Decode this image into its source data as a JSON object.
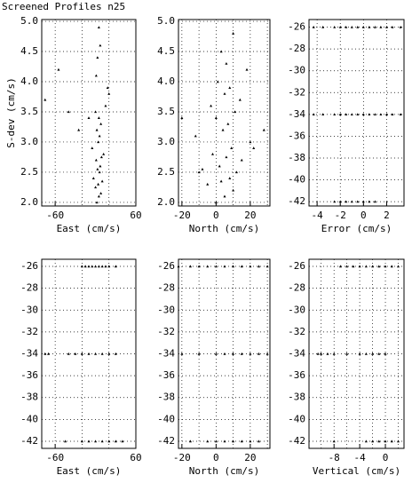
{
  "chart_data": [
    {
      "type": "scatter",
      "title": "Screened Profiles n25",
      "x_label": "East (cm/s)",
      "y_label": "S-dev (cm/s)",
      "x": [
        2,
        5,
        8,
        0,
        4,
        10,
        -3,
        6,
        3,
        7,
        1,
        9,
        12,
        -5,
        4,
        6,
        2,
        8,
        5,
        0,
        15,
        -10,
        20,
        -40,
        -75,
        -55,
        3,
        7,
        5,
        1,
        18,
        -25
      ],
      "y": [
        2.0,
        2.1,
        2.15,
        2.25,
        2.3,
        2.35,
        2.4,
        2.5,
        2.55,
        2.6,
        2.7,
        2.75,
        2.8,
        2.9,
        3.0,
        3.1,
        3.2,
        3.3,
        3.4,
        3.5,
        3.6,
        3.4,
        3.8,
        3.5,
        3.7,
        4.2,
        4.4,
        4.6,
        4.9,
        4.1,
        3.9,
        3.2
      ],
      "color": "#000000",
      "xlim": [
        -80,
        60
      ],
      "ylim": [
        1.94,
        5.03
      ],
      "xticks": [
        -60,
        60
      ],
      "xgrid": [
        -60,
        -20,
        20,
        60
      ],
      "yticks": [
        {
          "value": 2,
          "label": "2.0"
        },
        {
          "value": 2.5,
          "label": "2.5"
        },
        {
          "value": 3,
          "label": "3.0"
        },
        {
          "value": 3.5,
          "label": "3.5"
        },
        {
          "value": 4,
          "label": "4.0"
        },
        {
          "value": 4.5,
          "label": "4.5"
        },
        {
          "value": 5,
          "label": "5.0"
        }
      ]
    },
    {
      "type": "scatter",
      "x_label": "North (cm/s)",
      "x": [
        0,
        5,
        10,
        -5,
        3,
        8,
        12,
        -8,
        2,
        15,
        6,
        -2,
        9,
        20,
        -12,
        4,
        7,
        0,
        11,
        -3,
        14,
        5,
        8,
        1,
        18,
        28,
        -20,
        3,
        10,
        6,
        -10,
        22
      ],
      "y": [
        2.0,
        2.1,
        2.2,
        2.3,
        2.35,
        2.4,
        2.5,
        2.55,
        2.6,
        2.7,
        2.75,
        2.8,
        2.9,
        3.0,
        3.1,
        3.2,
        3.3,
        3.4,
        3.5,
        3.6,
        3.7,
        3.8,
        3.9,
        4.0,
        4.2,
        3.2,
        3.4,
        4.5,
        4.8,
        4.3,
        2.5,
        2.9
      ],
      "color": "#000000",
      "xlim": [
        -22,
        31.5
      ],
      "ylim": [
        1.94,
        5.03
      ],
      "xticks": [
        -20,
        0,
        20
      ],
      "xgrid": [
        -20,
        -10,
        0,
        10,
        20,
        30
      ],
      "yticks": [
        {
          "value": 2,
          "label": "2.0"
        },
        {
          "value": 2.5,
          "label": "2.5"
        },
        {
          "value": 3,
          "label": "3.0"
        },
        {
          "value": 3.5,
          "label": "3.5"
        },
        {
          "value": 4,
          "label": "4.0"
        },
        {
          "value": 4.5,
          "label": "4.5"
        },
        {
          "value": 5,
          "label": "5.0"
        }
      ]
    },
    {
      "type": "scatter",
      "x_label": "Error (cm/s)",
      "x": [
        -4.3,
        -3.5,
        -2.5,
        -2,
        -1.5,
        -1,
        -0.5,
        0,
        0.5,
        1,
        1.5,
        2,
        2.5,
        3.2,
        -4.3,
        -3.5,
        -2.5,
        -2,
        -1.5,
        -1,
        -0.5,
        0,
        0.5,
        1,
        1.5,
        2,
        2.5,
        3.2,
        -2.5,
        -2,
        -1.5,
        -1,
        -0.5,
        0,
        0.5,
        1
      ],
      "y": [
        -26,
        -26,
        -26,
        -26,
        -26,
        -26,
        -26,
        -26,
        -26,
        -26,
        -26,
        -26,
        -26,
        -26,
        -34,
        -34,
        -34,
        -34,
        -34,
        -34,
        -34,
        -34,
        -34,
        -34,
        -34,
        -34,
        -34,
        -34,
        -42,
        -42,
        -42,
        -42,
        -42,
        -42,
        -42,
        -42
      ],
      "color": "#000000",
      "xlim": [
        -4.7,
        3.5
      ],
      "ylim": [
        -42.4,
        -25.3
      ],
      "xticks": [
        -4,
        -2,
        0,
        2
      ],
      "xgrid": [
        -4,
        -2,
        0,
        2
      ],
      "yticks": [
        -42,
        -40,
        -38,
        -36,
        -34,
        -32,
        -30,
        -28,
        -26
      ]
    },
    {
      "type": "scatter",
      "x_label": "East (cm/s)",
      "x": [
        -20,
        -15,
        -10,
        -5,
        0,
        5,
        10,
        15,
        20,
        30,
        -75,
        -70,
        -40,
        -30,
        -20,
        -10,
        0,
        10,
        20,
        30,
        -45,
        -20,
        -10,
        0,
        10,
        20,
        30,
        40
      ],
      "y": [
        -26,
        -26,
        -26,
        -26,
        -26,
        -26,
        -26,
        -26,
        -26,
        -26,
        -34,
        -34,
        -34,
        -34,
        -34,
        -34,
        -34,
        -34,
        -34,
        -34,
        -42,
        -42,
        -42,
        -42,
        -42,
        -42,
        -42,
        -42
      ],
      "color": "#000000",
      "xlim": [
        -80,
        60
      ],
      "ylim": [
        -42.65,
        -25.35
      ],
      "xticks": [
        -60,
        60
      ],
      "xgrid": [
        -60,
        -20,
        20,
        60
      ],
      "yticks": [
        -42,
        -40,
        -38,
        -36,
        -34,
        -32,
        -30,
        -28,
        -26
      ]
    },
    {
      "type": "scatter",
      "x_label": "North (cm/s)",
      "x": [
        -22,
        -15,
        -10,
        -5,
        0,
        5,
        10,
        15,
        20,
        25,
        30,
        -20,
        -10,
        0,
        5,
        10,
        15,
        20,
        25,
        30,
        -15,
        -5,
        0,
        5,
        10,
        15,
        20,
        25
      ],
      "y": [
        -26,
        -26,
        -26,
        -26,
        -26,
        -26,
        -26,
        -26,
        -26,
        -26,
        -26,
        -34,
        -34,
        -34,
        -34,
        -34,
        -34,
        -34,
        -34,
        -34,
        -42,
        -42,
        -42,
        -42,
        -42,
        -42,
        -42,
        -42
      ],
      "color": "#000000",
      "xlim": [
        -22,
        31.5
      ],
      "ylim": [
        -42.65,
        -25.35
      ],
      "xticks": [
        -20,
        0,
        20
      ],
      "xgrid": [
        -20,
        -10,
        0,
        10,
        20,
        30
      ],
      "yticks": [
        -42,
        -40,
        -38,
        -36,
        -34,
        -32,
        -30,
        -28,
        -26
      ]
    },
    {
      "type": "scatter",
      "x_label": "Vertical (cm/s)",
      "x": [
        -7,
        -6,
        -5,
        -4,
        -3,
        -2,
        -1,
        0,
        1,
        2,
        -10.5,
        -10,
        -9,
        -8,
        -6,
        -4,
        -3,
        -2,
        -1,
        0,
        -8,
        -3,
        -2,
        -1,
        0,
        1,
        2
      ],
      "y": [
        -26,
        -26,
        -26,
        -26,
        -26,
        -26,
        -26,
        -26,
        -26,
        -26,
        -34,
        -34,
        -34,
        -34,
        -34,
        -34,
        -34,
        -34,
        -34,
        -34,
        -42,
        -42,
        -42,
        -42,
        -42,
        -42,
        -42
      ],
      "color": "#000000",
      "xlim": [
        -11.9,
        2.9
      ],
      "ylim": [
        -42.65,
        -25.35
      ],
      "xticks": [
        -8,
        -4,
        0
      ],
      "xgrid": [
        -10,
        -8,
        -6,
        -4,
        -2,
        0,
        2
      ],
      "yticks": [
        -42,
        -40,
        -38,
        -36,
        -34,
        -32,
        -30,
        -28,
        -26
      ]
    }
  ]
}
